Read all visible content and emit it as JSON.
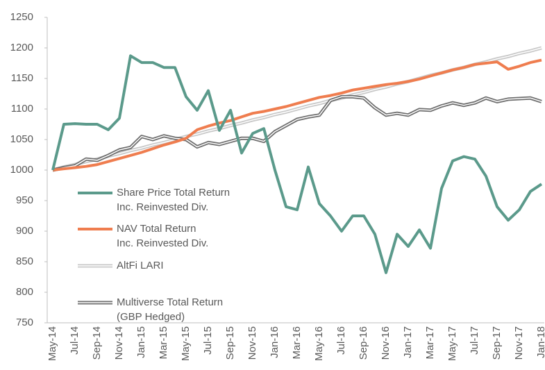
{
  "chart_data": {
    "type": "line",
    "categories": [
      "May-14",
      null,
      "Jul-14",
      null,
      "Sep-14",
      null,
      "Nov-14",
      null,
      "Jan-15",
      null,
      "Mar-15",
      null,
      "May-15",
      null,
      "Jul-15",
      null,
      "Sep-15",
      null,
      "Nov-15",
      null,
      "Jan-16",
      null,
      "Mar-16",
      null,
      "May-16",
      null,
      "Jul-16",
      null,
      "Sep-16",
      null,
      "Nov-16",
      null,
      "Jan-17",
      null,
      "Mar-17",
      null,
      "May-17",
      null,
      "Jul-17",
      null,
      "Sep-17",
      null,
      "Nov-17",
      null,
      "Jan-18"
    ],
    "ylim": [
      750,
      1250
    ],
    "yticks": [
      750,
      800,
      850,
      900,
      950,
      1000,
      1050,
      1100,
      1150,
      1200,
      1250
    ],
    "legend": "left",
    "series": [
      {
        "name": "Share Price Total Return\nInc. Reinvested Div.",
        "color": "#5b9a8b",
        "style": "solid",
        "values": [
          1000,
          1075,
          1076,
          1075,
          1075,
          1066,
          1085,
          1187,
          1176,
          1176,
          1168,
          1168,
          1120,
          1098,
          1130,
          1065,
          1098,
          1028,
          1060,
          1068,
          1000,
          940,
          935,
          1005,
          945,
          925,
          900,
          925,
          925,
          895,
          832,
          895,
          875,
          902,
          872,
          970,
          1015,
          1022,
          1018,
          990,
          940,
          918,
          935,
          965,
          977
        ]
      },
      {
        "name": "NAV Total Return\nInc. Reinvested Div.",
        "color": "#ef7d4f",
        "style": "solid",
        "values": [
          1000,
          1002,
          1004,
          1006,
          1009,
          1014,
          1019,
          1024,
          1029,
          1035,
          1041,
          1046,
          1052,
          1066,
          1072,
          1077,
          1081,
          1087,
          1093,
          1096,
          1100,
          1104,
          1109,
          1114,
          1119,
          1122,
          1126,
          1131,
          1134,
          1137,
          1140,
          1142,
          1145,
          1149,
          1154,
          1159,
          1164,
          1168,
          1173,
          1175,
          1177,
          1165,
          1170,
          1176,
          1180
        ]
      },
      {
        "name": "AltFi LARI",
        "color": "#c8c8c8",
        "style": "double",
        "values": [
          1000,
          1005,
          1009,
          1014,
          1018,
          1023,
          1027,
          1032,
          1036,
          1041,
          1045,
          1050,
          1055,
          1059,
          1064,
          1068,
          1073,
          1077,
          1082,
          1086,
          1091,
          1095,
          1100,
          1105,
          1109,
          1114,
          1118,
          1123,
          1127,
          1132,
          1136,
          1141,
          1145,
          1150,
          1155,
          1159,
          1164,
          1168,
          1173,
          1177,
          1182,
          1186,
          1191,
          1195,
          1200
        ]
      },
      {
        "name": "Multiverse Total Return\n(GBP Hedged)",
        "color": "#6e6e6e",
        "style": "double",
        "values": [
          1000,
          1004,
          1007,
          1018,
          1016,
          1024,
          1033,
          1037,
          1055,
          1050,
          1056,
          1052,
          1050,
          1038,
          1045,
          1042,
          1047,
          1052,
          1052,
          1047,
          1063,
          1073,
          1083,
          1087,
          1090,
          1114,
          1120,
          1120,
          1118,
          1102,
          1090,
          1093,
          1090,
          1099,
          1098,
          1105,
          1110,
          1106,
          1110,
          1118,
          1112,
          1116,
          1117,
          1118,
          1112
        ]
      }
    ]
  }
}
